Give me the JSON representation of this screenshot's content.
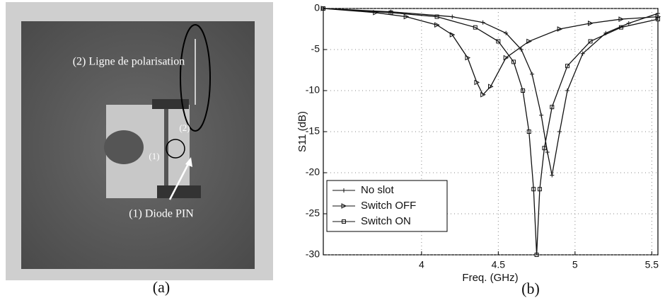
{
  "photo": {
    "labels": [
      "(2) Ligne de polarisation",
      "(1) Diode PIN",
      "(1)",
      "(2)"
    ],
    "caption": "(a)"
  },
  "chart_data": {
    "type": "line",
    "caption": "(b)",
    "xlabel": "Freq. (GHz)",
    "ylabel": "S11 (dB)",
    "xlim": [
      3.36,
      5.54
    ],
    "ylim": [
      -30,
      0
    ],
    "xticks": [
      4,
      4.5,
      5,
      5.5
    ],
    "yticks": [
      0,
      -5,
      -10,
      -15,
      -20,
      -25,
      -30
    ],
    "grid": true,
    "legend": "lower-left",
    "series": [
      {
        "name": "No slot",
        "color": "#111111",
        "marker": "plus",
        "x": [
          3.36,
          3.8,
          4.2,
          4.4,
          4.55,
          4.65,
          4.72,
          4.78,
          4.82,
          4.85,
          4.9,
          4.95,
          5.05,
          5.2,
          5.35,
          5.54
        ],
        "values": [
          0,
          -0.4,
          -1,
          -1.7,
          -3,
          -5,
          -8,
          -13,
          -17.5,
          -20.3,
          -15,
          -10,
          -5.5,
          -3,
          -1.8,
          -0.6
        ]
      },
      {
        "name": "Switch OFF",
        "color": "#111111",
        "marker": "triangle",
        "x": [
          3.36,
          3.7,
          3.9,
          4.1,
          4.2,
          4.3,
          4.36,
          4.4,
          4.45,
          4.55,
          4.7,
          4.9,
          5.1,
          5.3,
          5.54
        ],
        "values": [
          0,
          -0.5,
          -1,
          -2,
          -3.2,
          -6,
          -9,
          -10.5,
          -9.5,
          -6,
          -4,
          -2.5,
          -1.8,
          -1.3,
          -1
        ]
      },
      {
        "name": "Switch ON",
        "color": "#111111",
        "marker": "square",
        "x": [
          3.36,
          3.8,
          4.1,
          4.35,
          4.5,
          4.6,
          4.66,
          4.7,
          4.73,
          4.75,
          4.77,
          4.8,
          4.85,
          4.95,
          5.1,
          5.3,
          5.54
        ],
        "values": [
          0,
          -0.5,
          -1,
          -2.3,
          -4,
          -6.5,
          -10,
          -15,
          -22,
          -30,
          -22,
          -17,
          -12,
          -7,
          -4,
          -2.3,
          -1.3
        ]
      }
    ]
  }
}
